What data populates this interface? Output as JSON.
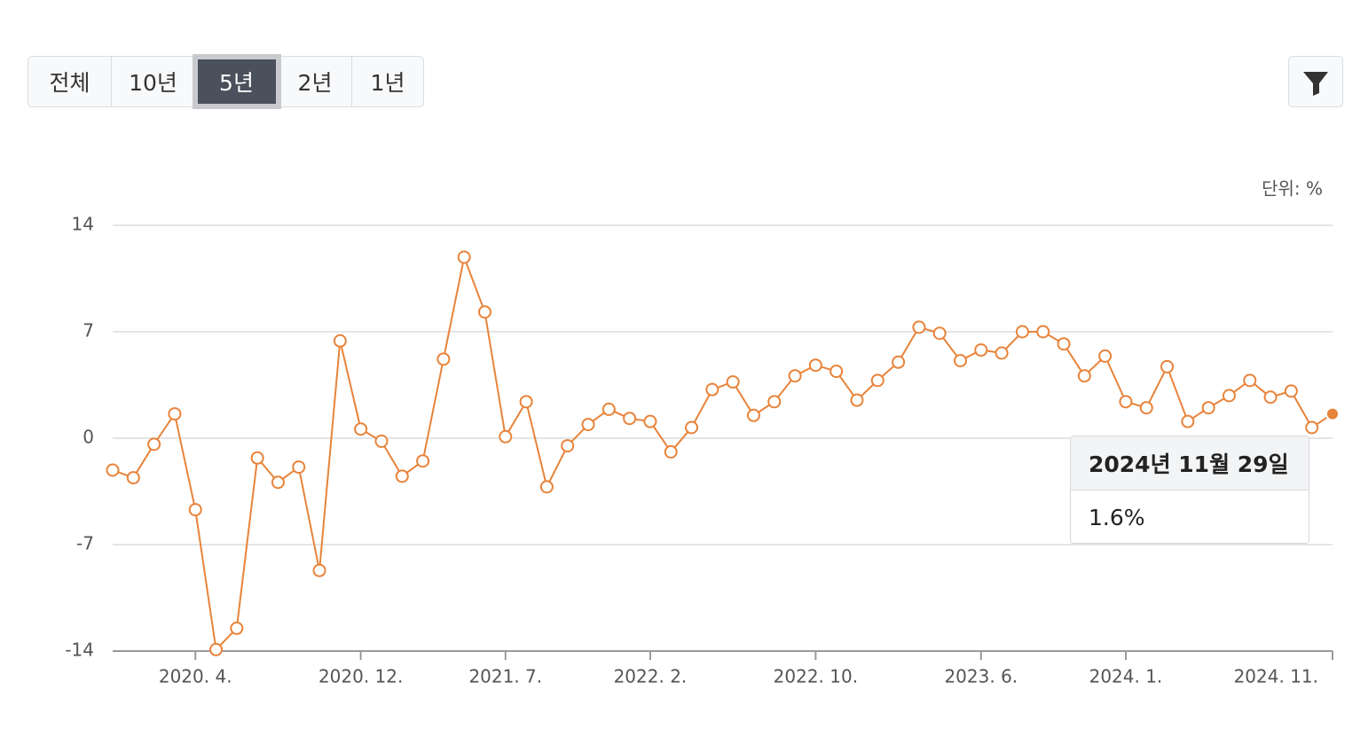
{
  "periods": [
    "전체",
    "10년",
    "5년",
    "2년",
    "1년"
  ],
  "active_period": 2,
  "chart_data": {
    "type": "line",
    "unit_label": "단위: %",
    "color": "#e8833a",
    "categories": [
      null,
      null,
      null,
      null,
      "2020. 4.",
      null,
      null,
      null,
      null,
      null,
      null,
      null,
      "2020. 12.",
      null,
      null,
      null,
      null,
      null,
      null,
      "2021. 7.",
      null,
      null,
      null,
      null,
      null,
      null,
      "2022. 2.",
      null,
      null,
      null,
      null,
      null,
      null,
      null,
      "2022. 10.",
      null,
      null,
      null,
      null,
      null,
      null,
      null,
      "2023. 6.",
      null,
      null,
      null,
      null,
      null,
      null,
      "2024. 1.",
      null,
      null,
      null,
      null,
      null,
      null,
      null,
      null,
      null,
      "2024. 11."
    ],
    "values": [
      -2.1,
      -2.6,
      -0.4,
      1.6,
      -4.7,
      -13.9,
      -12.5,
      -1.3,
      -2.9,
      -1.9,
      -8.7,
      6.4,
      0.6,
      -0.2,
      -2.5,
      -1.5,
      5.2,
      11.9,
      8.3,
      0.1,
      2.4,
      -3.2,
      -0.5,
      0.9,
      1.9,
      1.3,
      1.1,
      -0.9,
      0.7,
      3.2,
      3.7,
      1.5,
      2.4,
      4.1,
      4.8,
      4.4,
      2.5,
      3.8,
      5.0,
      7.3,
      6.9,
      5.1,
      5.8,
      5.6,
      7.0,
      7.0,
      6.2,
      4.1,
      5.4,
      2.4,
      2.0,
      4.7,
      1.1,
      2.0,
      2.8,
      3.8,
      2.7,
      3.1,
      0.7,
      1.6
    ],
    "ylim": [
      -14,
      14
    ],
    "yticks": [
      -14,
      -7,
      0,
      7,
      14
    ],
    "grid": true,
    "tooltip": {
      "title": "2024년 11월 29일",
      "value": "1.6%"
    }
  }
}
